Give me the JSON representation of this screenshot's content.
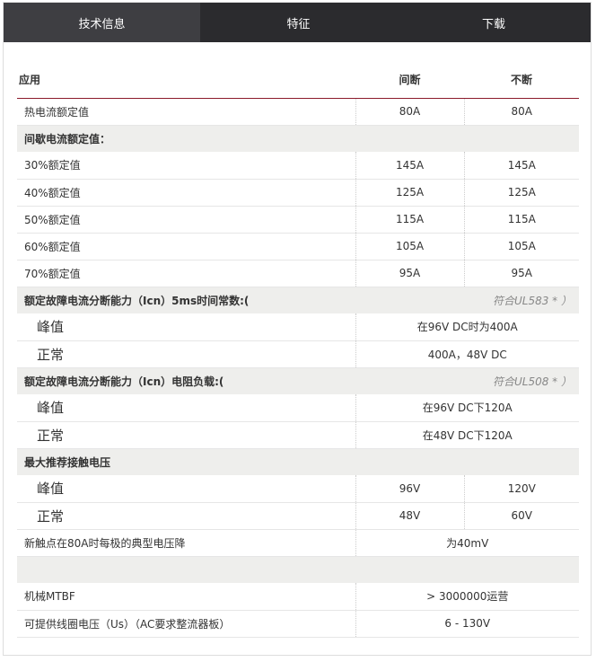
{
  "tabs": [
    "技术信息",
    "特征",
    "下载"
  ],
  "header": {
    "app": "应用",
    "col1": "间断",
    "col2": "不断"
  },
  "rows": [
    {
      "type": "row",
      "label": "热电流额定值",
      "v1": "80A",
      "v2": "80A"
    },
    {
      "type": "sec",
      "label": "间歇电流额定值："
    },
    {
      "type": "row",
      "label": "30%额定值",
      "v1": "145A",
      "v2": "145A"
    },
    {
      "type": "row",
      "label": "40%额定值",
      "v1": "125A",
      "v2": "125A"
    },
    {
      "type": "row",
      "label": "50%额定值",
      "v1": "115A",
      "v2": "115A"
    },
    {
      "type": "row",
      "label": "60%额定值",
      "v1": "105A",
      "v2": "105A"
    },
    {
      "type": "row",
      "label": "70%额定值",
      "v1": "95A",
      "v2": "95A"
    },
    {
      "type": "sec",
      "label": "额定故障电流分断能力（Icn）5ms时间常数:(",
      "note": "符合UL583 * ）"
    },
    {
      "type": "span",
      "big": true,
      "label": "峰值",
      "v": "在96V DC时为400A"
    },
    {
      "type": "span",
      "big": true,
      "label": "正常",
      "v": "400A，48V DC"
    },
    {
      "type": "sec",
      "label": "额定故障电流分断能力（Icn）电阻负载:(",
      "note": "符合UL508 * ）"
    },
    {
      "type": "span",
      "big": true,
      "label": "峰值",
      "v": "在96V DC下120A"
    },
    {
      "type": "span",
      "big": true,
      "label": "正常",
      "v": "在48V DC下120A"
    },
    {
      "type": "sec",
      "label": "最大推荐接触电压"
    },
    {
      "type": "row",
      "big": true,
      "label": "峰值",
      "v1": "96V",
      "v2": "120V"
    },
    {
      "type": "row",
      "big": true,
      "label": "正常",
      "v1": "48V",
      "v2": "60V"
    },
    {
      "type": "span",
      "label": "新触点在80A时每极的典型电压降",
      "v": "为40mV"
    },
    {
      "type": "sec",
      "label": ""
    },
    {
      "type": "span",
      "label": "机械MTBF",
      "v": "> 3000000运营"
    },
    {
      "type": "span",
      "label": "可提供线圈电压（Us）（AC要求整流器板）",
      "v": "6 - 130V"
    }
  ]
}
